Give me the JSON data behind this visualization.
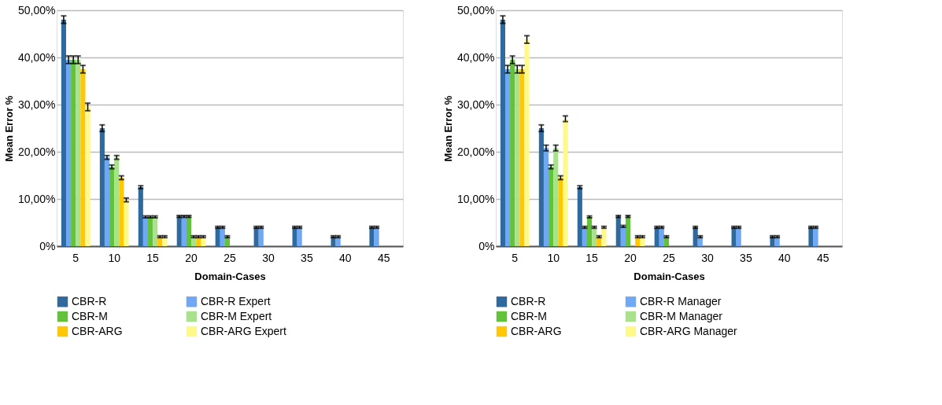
{
  "chart_data": [
    {
      "type": "bar",
      "xlabel": "Domain-Cases",
      "ylabel": "Mean Error %",
      "categories": [
        "5",
        "10",
        "15",
        "20",
        "25",
        "30",
        "35",
        "40",
        "45"
      ],
      "ylim": [
        0,
        50
      ],
      "yticks": [
        {
          "value": 0,
          "label": "0%"
        },
        {
          "value": 10,
          "label": "10,00%"
        },
        {
          "value": 20,
          "label": "20,00%"
        },
        {
          "value": 30,
          "label": "30,00%"
        },
        {
          "value": 40,
          "label": "40,00%"
        },
        {
          "value": 50,
          "label": "50,00%"
        }
      ],
      "grid": "y",
      "legend": "bottom",
      "series": [
        {
          "name": "CBR-R",
          "color": "#2e6a9e",
          "values": [
            48,
            25,
            12.5,
            6.3,
            4,
            4,
            4,
            2,
            4
          ],
          "errors": [
            0.8,
            0.7,
            0.3,
            0.2,
            0.2,
            0.2,
            0.2,
            0.2,
            0.2
          ]
        },
        {
          "name": "CBR-R Expert",
          "color": "#6fa8f5",
          "values": [
            39.5,
            18.8,
            6.2,
            6.3,
            4,
            4,
            4,
            2,
            4
          ],
          "errors": [
            0.8,
            0.4,
            0.2,
            0.2,
            0.2,
            0.2,
            0.2,
            0.2,
            0.2
          ]
        },
        {
          "name": "CBR-M",
          "color": "#62c33a",
          "values": [
            39.5,
            16.8,
            6.2,
            6.3,
            2,
            null,
            null,
            null,
            null
          ],
          "errors": [
            0.8,
            0.4,
            0.2,
            0.2,
            0.2,
            null,
            null,
            null,
            null
          ]
        },
        {
          "name": "CBR-M Expert",
          "color": "#a8e38c",
          "values": [
            39.5,
            18.8,
            6.2,
            2,
            null,
            null,
            null,
            null,
            null
          ],
          "errors": [
            0.8,
            0.4,
            0.2,
            0.2,
            null,
            null,
            null,
            null,
            null
          ]
        },
        {
          "name": "CBR-ARG",
          "color": "#ffc800",
          "values": [
            37.5,
            14.5,
            2,
            2,
            null,
            null,
            null,
            null,
            null
          ],
          "errors": [
            0.8,
            0.4,
            0.2,
            0.2,
            null,
            null,
            null,
            null,
            null
          ]
        },
        {
          "name": "CBR-ARG Expert",
          "color": "#fff98a",
          "values": [
            29.5,
            9.8,
            2,
            2,
            null,
            null,
            null,
            null,
            null
          ],
          "errors": [
            0.8,
            0.4,
            0.2,
            0.2,
            null,
            null,
            null,
            null,
            null
          ]
        }
      ]
    },
    {
      "type": "bar",
      "xlabel": "Domain-Cases",
      "ylabel": "Mean Error %",
      "categories": [
        "5",
        "10",
        "15",
        "20",
        "25",
        "30",
        "35",
        "40",
        "45"
      ],
      "ylim": [
        0,
        50
      ],
      "yticks": [
        {
          "value": 0,
          "label": "0%"
        },
        {
          "value": 10,
          "label": "10,00%"
        },
        {
          "value": 20,
          "label": "20,00%"
        },
        {
          "value": 30,
          "label": "30,00%"
        },
        {
          "value": 40,
          "label": "40,00%"
        },
        {
          "value": 50,
          "label": "50,00%"
        }
      ],
      "grid": "y",
      "legend": "bottom",
      "series": [
        {
          "name": "CBR-R",
          "color": "#2e6a9e",
          "values": [
            48,
            25,
            12.5,
            6.3,
            4,
            4,
            4,
            2,
            4
          ],
          "errors": [
            0.8,
            0.7,
            0.3,
            0.2,
            0.2,
            0.2,
            0.2,
            0.2,
            0.2
          ]
        },
        {
          "name": "CBR-R Manager",
          "color": "#6fa8f5",
          "values": [
            37.5,
            20.8,
            4,
            4.2,
            4,
            2,
            4,
            2,
            4
          ],
          "errors": [
            0.8,
            0.6,
            0.2,
            0.2,
            0.2,
            0.2,
            0.2,
            0.2,
            0.2
          ]
        },
        {
          "name": "CBR-M",
          "color": "#62c33a",
          "values": [
            39.5,
            16.8,
            6.2,
            6.3,
            2,
            null,
            null,
            null,
            null
          ],
          "errors": [
            0.8,
            0.4,
            0.2,
            0.2,
            0.2,
            null,
            null,
            null,
            null
          ]
        },
        {
          "name": "CBR-M Manager",
          "color": "#a8e38c",
          "values": [
            37.5,
            20.8,
            4,
            null,
            null,
            null,
            null,
            null,
            null
          ],
          "errors": [
            0.8,
            0.6,
            0.2,
            null,
            null,
            null,
            null,
            null,
            null
          ]
        },
        {
          "name": "CBR-ARG",
          "color": "#ffc800",
          "values": [
            37.5,
            14.5,
            2,
            2,
            null,
            null,
            null,
            null,
            null
          ],
          "errors": [
            0.8,
            0.4,
            0.2,
            0.2,
            null,
            null,
            null,
            null,
            null
          ]
        },
        {
          "name": "CBR-ARG Manager",
          "color": "#fff98a",
          "values": [
            43.8,
            27,
            4,
            2,
            null,
            null,
            null,
            null,
            null
          ],
          "errors": [
            0.8,
            0.6,
            0.2,
            0.2,
            null,
            null,
            null,
            null,
            null
          ]
        }
      ]
    }
  ]
}
